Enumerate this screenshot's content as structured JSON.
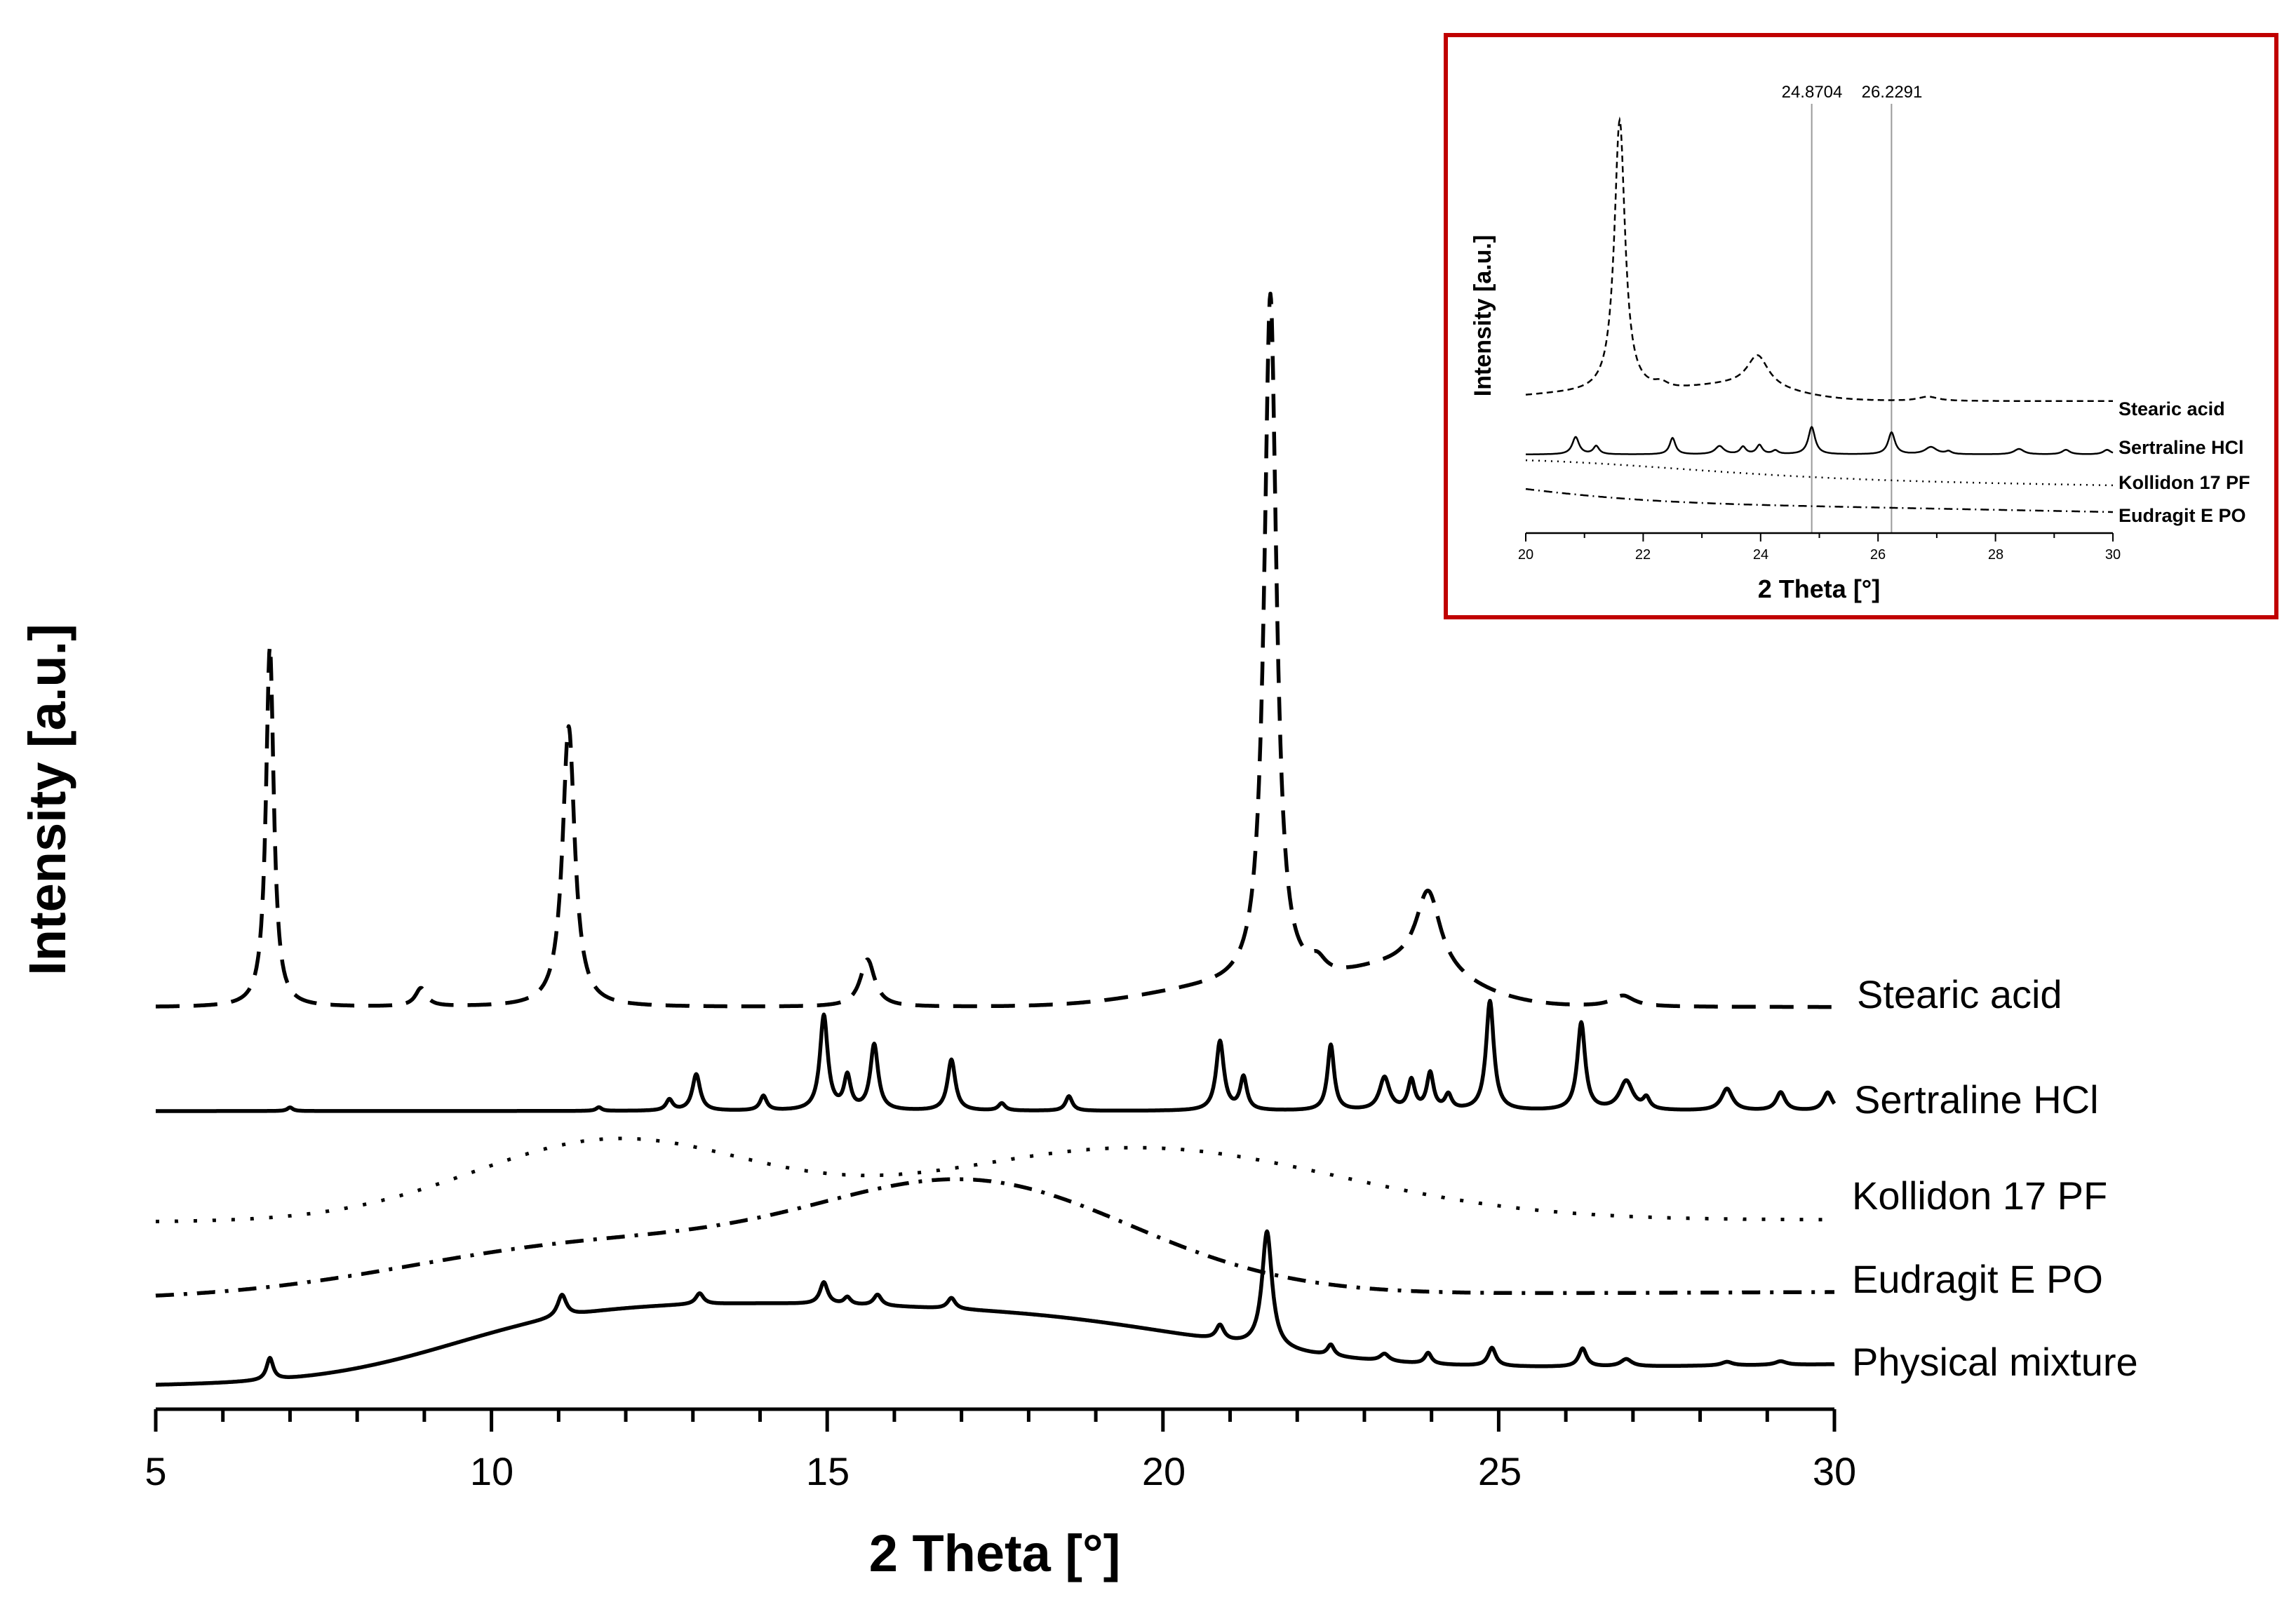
{
  "chart_data": [
    {
      "type": "line",
      "title": "",
      "xlabel": "2 Theta [°]",
      "ylabel": "Intensity [a.u.]",
      "xlim": [
        5,
        30
      ],
      "xticks": [
        5,
        10,
        15,
        20,
        25,
        30
      ],
      "yticks": [],
      "grid": false,
      "legend": "labels at right end of each trace",
      "offset_traces": true,
      "series": [
        {
          "name": "Stearic acid",
          "style": "dashed",
          "base": 0.0,
          "peaks": [
            [
              6.7,
              0.99,
              0.07
            ],
            [
              8.95,
              0.05,
              0.1
            ],
            [
              11.15,
              0.77,
              0.11
            ],
            [
              15.6,
              0.13,
              0.13
            ],
            [
              21.6,
              1.9,
              0.11
            ],
            [
              22.3,
              0.04,
              0.15
            ],
            [
              23.95,
              0.22,
              0.22
            ],
            [
              26.85,
              0.03,
              0.2
            ]
          ],
          "broad": [
            [
              21.0,
              0.05,
              1.2
            ],
            [
              23.6,
              0.1,
              0.9
            ]
          ]
        },
        {
          "name": "Sertraline HCl",
          "style": "solid",
          "base": 0.0,
          "peaks": [
            [
              7.0,
              0.01,
              0.05
            ],
            [
              11.6,
              0.01,
              0.05
            ],
            [
              12.65,
              0.03,
              0.06
            ],
            [
              13.05,
              0.1,
              0.07
            ],
            [
              14.05,
              0.04,
              0.06
            ],
            [
              14.95,
              0.26,
              0.07
            ],
            [
              15.3,
              0.09,
              0.06
            ],
            [
              15.7,
              0.18,
              0.07
            ],
            [
              16.85,
              0.14,
              0.07
            ],
            [
              17.6,
              0.02,
              0.06
            ],
            [
              18.6,
              0.04,
              0.06
            ],
            [
              20.85,
              0.19,
              0.07
            ],
            [
              21.2,
              0.09,
              0.06
            ],
            [
              22.5,
              0.18,
              0.06
            ],
            [
              23.3,
              0.09,
              0.09
            ],
            [
              23.7,
              0.08,
              0.06
            ],
            [
              23.98,
              0.1,
              0.06
            ],
            [
              24.25,
              0.04,
              0.06
            ],
            [
              24.87,
              0.3,
              0.07
            ],
            [
              26.23,
              0.24,
              0.07
            ],
            [
              26.9,
              0.08,
              0.12
            ],
            [
              27.2,
              0.03,
              0.06
            ],
            [
              28.4,
              0.06,
              0.1
            ],
            [
              29.2,
              0.05,
              0.08
            ],
            [
              29.9,
              0.05,
              0.08
            ]
          ],
          "broad": []
        },
        {
          "name": "Kollidon 17 PF",
          "style": "dotted",
          "base": 0.0,
          "peaks": [],
          "broad": [
            [
              11.8,
              0.22,
              2.1
            ],
            [
              19.6,
              0.2,
              3.0
            ]
          ]
        },
        {
          "name": "Eudragit E PO",
          "style": "dashdot",
          "base": 0.0,
          "peaks": [],
          "broad": [
            [
              11.5,
              0.14,
              2.8
            ],
            [
              17.2,
              0.3,
              2.4
            ]
          ]
        },
        {
          "name": "Physical mixture",
          "style": "solid",
          "base": 0.0,
          "peaks": [
            [
              6.7,
              0.06,
              0.06
            ],
            [
              11.05,
              0.06,
              0.08
            ],
            [
              13.1,
              0.03,
              0.07
            ],
            [
              14.95,
              0.06,
              0.07
            ],
            [
              15.3,
              0.02,
              0.06
            ],
            [
              15.75,
              0.03,
              0.07
            ],
            [
              16.85,
              0.03,
              0.07
            ],
            [
              20.85,
              0.04,
              0.07
            ],
            [
              21.55,
              0.32,
              0.09
            ],
            [
              22.5,
              0.03,
              0.06
            ],
            [
              23.3,
              0.02,
              0.08
            ],
            [
              23.95,
              0.03,
              0.06
            ],
            [
              24.9,
              0.05,
              0.07
            ],
            [
              26.25,
              0.05,
              0.07
            ],
            [
              26.9,
              0.02,
              0.1
            ],
            [
              28.4,
              0.01,
              0.1
            ],
            [
              29.2,
              0.01,
              0.1
            ]
          ],
          "broad": [
            [
              13.0,
              0.16,
              2.6
            ],
            [
              18.0,
              0.14,
              2.8
            ],
            [
              10.5,
              0.05,
              1.6
            ]
          ]
        }
      ]
    },
    {
      "type": "line",
      "title": "",
      "xlabel": "2 Theta [°]",
      "ylabel": "Intensity [a.u.]",
      "xlim": [
        20,
        30
      ],
      "xticks": [
        20,
        22,
        24,
        26,
        28,
        30
      ],
      "grid": false,
      "reference_lines": [
        24.8704,
        26.2291
      ],
      "reference_labels": [
        "24.8704",
        "26.2291"
      ],
      "series": [
        {
          "name": "Stearic acid",
          "style": "dashed"
        },
        {
          "name": "Sertraline HCl",
          "style": "solid"
        },
        {
          "name": "Kollidon 17 PF",
          "style": "dotted"
        },
        {
          "name": "Eudragit E PO",
          "style": "dashdot"
        }
      ]
    }
  ],
  "main": {
    "x_label": "2 Theta [°]",
    "y_label": "Intensity [a.u.]",
    "tick_labels": [
      "5",
      "10",
      "15",
      "20",
      "25",
      "30"
    ],
    "legend": [
      "Stearic acid",
      "Sertraline HCl",
      "Kollidon 17 PF",
      "Eudragit E PO",
      "Physical mixture"
    ]
  },
  "inset": {
    "x_label": "2 Theta [°]",
    "y_label": "Intensity [a.u.]",
    "tick_labels": [
      "20",
      "22",
      "24",
      "26",
      "28",
      "30"
    ],
    "legend": [
      "Stearic acid",
      "Sertraline HCl",
      "Kollidon 17 PF",
      "Eudragit E PO"
    ],
    "ref_labels": [
      "24.8704",
      "26.2291"
    ],
    "border_color": "#c00000"
  },
  "colors": {
    "line": "#000000",
    "inset_border": "#c00000",
    "ref_line": "#9a9a9a"
  }
}
